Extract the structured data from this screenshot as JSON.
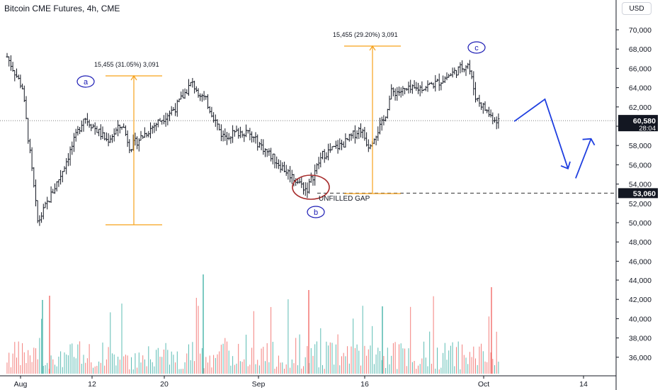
{
  "header": {
    "title": "Bitcoin CME Futures, 4h, CME",
    "currency": "USD"
  },
  "price_scale": {
    "ticks": [
      "70,000",
      "68,000",
      "66,000",
      "64,000",
      "62,000",
      "60,000",
      "58,000",
      "56,000",
      "54,000",
      "52,000",
      "50,000",
      "48,000",
      "46,000"
    ],
    "current_price": "60,580",
    "countdown": "28:04",
    "gap_price": "53,060"
  },
  "volume_scale": {
    "ticks": [
      "44,000",
      "42,000",
      "40,000",
      "38,000",
      "36,000"
    ]
  },
  "time_scale": {
    "labels": [
      "Aug",
      "12",
      "20",
      "Sep",
      "16",
      "Oct",
      "14"
    ]
  },
  "annotations": {
    "wave_a": "a",
    "wave_b": "b",
    "wave_c": "c",
    "measure_1": "15,455 (31.05%) 3,091",
    "measure_2": "15,455 (29.20%) 3,091",
    "gap_label": "UNFILLED GAP"
  },
  "colors": {
    "up": "#26a69a",
    "down": "#ef5350",
    "bar": "#131722",
    "measure": "#f7a21b",
    "wave_label": "#1a1ab4",
    "projection": "#1f3fe0",
    "circle": "#a62b2b"
  },
  "chart_data": {
    "type": "bar",
    "subtype": "ohlc",
    "x_axis": [
      "Aug",
      "12",
      "20",
      "Sep",
      "16",
      "Oct",
      "14"
    ],
    "ylim": [
      46000,
      71000
    ],
    "price_path": [
      {
        "date": "Aug 1",
        "price": 67200
      },
      {
        "date": "Aug 3",
        "price": 64000
      },
      {
        "date": "Aug 5",
        "price": 50000
      },
      {
        "date": "Aug 8",
        "price": 55000
      },
      {
        "date": "Aug 11",
        "price": 61000
      },
      {
        "date": "Aug 14",
        "price": 58500
      },
      {
        "date": "Aug 16",
        "price": 60200
      },
      {
        "date": "Aug 17",
        "price": 57800
      },
      {
        "date": "Aug 20",
        "price": 60000
      },
      {
        "date": "Aug 23",
        "price": 62000
      },
      {
        "date": "Aug 25",
        "price": 64500
      },
      {
        "date": "Aug 27",
        "price": 62500
      },
      {
        "date": "Aug 29",
        "price": 59000
      },
      {
        "date": "Sep 1",
        "price": 59500
      },
      {
        "date": "Sep 3",
        "price": 58000
      },
      {
        "date": "Sep 6",
        "price": 55600
      },
      {
        "date": "Sep 9",
        "price": 53400
      },
      {
        "date": "Sep 11",
        "price": 57000
      },
      {
        "date": "Sep 14",
        "price": 58300
      },
      {
        "date": "Sep 16",
        "price": 59800
      },
      {
        "date": "Sep 17",
        "price": 58000
      },
      {
        "date": "Sep 19",
        "price": 60500
      },
      {
        "date": "Sep 20",
        "price": 63500
      },
      {
        "date": "Sep 23",
        "price": 63800
      },
      {
        "date": "Sep 26",
        "price": 64500
      },
      {
        "date": "Sep 28",
        "price": 65500
      },
      {
        "date": "Sep 30",
        "price": 66500
      },
      {
        "date": "Oct 1",
        "price": 63000
      },
      {
        "date": "Oct 3",
        "price": 61000
      },
      {
        "date": "Oct 4",
        "price": 60580
      }
    ],
    "current_price": 60580,
    "gap_level": 53060,
    "projection": [
      {
        "date": "Oct 6",
        "price": 60500
      },
      {
        "date": "Oct 10",
        "price": 62800
      },
      {
        "date": "Oct 13",
        "price": 55600
      },
      {
        "date": "Oct 14",
        "price": 54600
      },
      {
        "date": "Oct 16",
        "price": 58700
      }
    ]
  }
}
